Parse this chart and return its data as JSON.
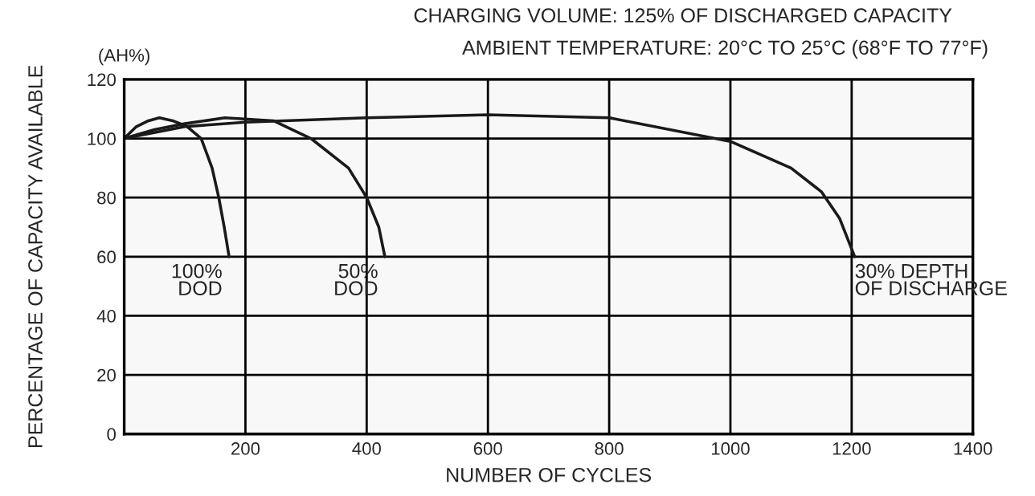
{
  "chart_data": {
    "type": "line",
    "title": "CHARGING VOLUME: 125% OF DISCHARGED CAPACITY",
    "subtitle": "AMBIENT TEMPERATURE: 20°C TO 25°C (68°F TO 77°F)",
    "xlabel": "NUMBER OF CYCLES",
    "ylabel": "PERCENTAGE OF CAPACITY AVAILABLE",
    "annotations": [
      "(AH%)",
      {
        "text": "100%\nDOD",
        "x": 173,
        "y": 60
      },
      {
        "text": "50%\nDOD",
        "x": 430,
        "y": 60
      },
      {
        "text": "30% DEPTH\nOF DISCHARGE",
        "x": 1205,
        "y": 60
      }
    ],
    "series": [
      {
        "color": "#1a1a1a",
        "x": [
          0,
          20,
          40,
          58,
          80,
          104,
          127,
          145,
          156,
          165,
          173
        ],
        "values": [
          100,
          104,
          106,
          107,
          106,
          104,
          100,
          90,
          80,
          70,
          60
        ]
      },
      {
        "color": "#1a1a1a",
        "x": [
          0,
          50,
          100,
          166,
          246,
          308,
          370,
          400,
          420,
          430
        ],
        "values": [
          100,
          103,
          105,
          107,
          106,
          100,
          90,
          80,
          70,
          60
        ]
      },
      {
        "color": "#1a1a1a",
        "x": [
          0,
          100,
          200,
          400,
          600,
          800,
          1000,
          1100,
          1150,
          1180,
          1205
        ],
        "values": [
          100,
          104,
          105.5,
          107,
          108,
          107,
          99,
          90,
          82,
          73,
          60
        ]
      }
    ],
    "xlim": [
      0,
      1400
    ],
    "ylim": [
      0,
      120
    ],
    "xticks": [
      {
        "value": 0,
        "label": null
      },
      200,
      400,
      600,
      800,
      1000,
      1200,
      1400
    ],
    "yticks": [
      0,
      20,
      40,
      60,
      80,
      100,
      120
    ],
    "grid": true,
    "legend": false,
    "marker": "none",
    "line_style": "solid"
  }
}
